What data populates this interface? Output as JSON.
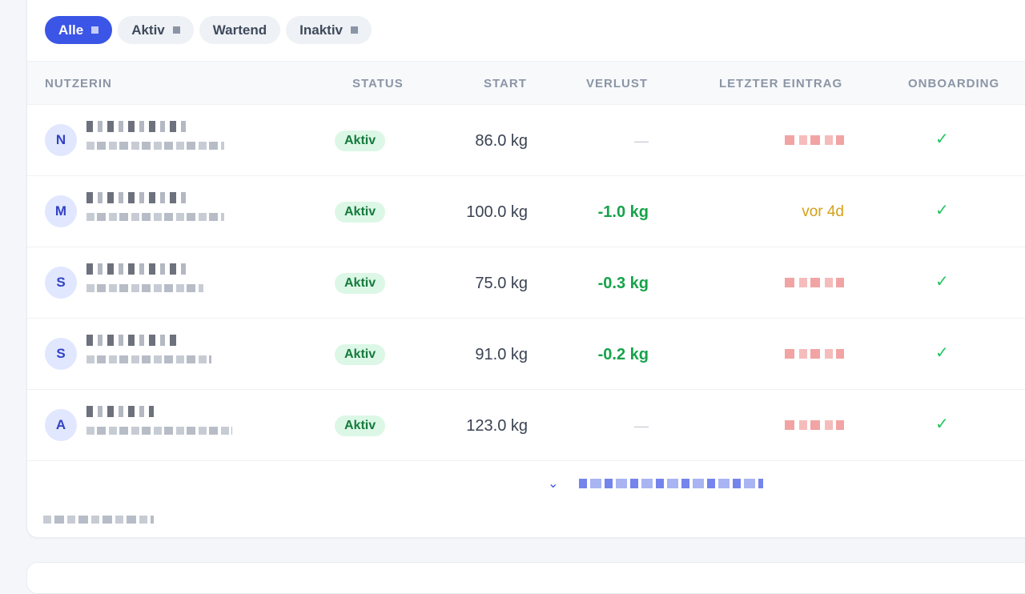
{
  "filters": [
    {
      "label": "Alle",
      "active": true
    },
    {
      "label": "Aktiv",
      "active": false
    },
    {
      "label": "Wartend",
      "active": false
    },
    {
      "label": "Inaktiv",
      "active": false
    }
  ],
  "columns": {
    "user": "NUTZERIN",
    "status": "STATUS",
    "start": "START",
    "loss": "VERLUST",
    "last": "LETZTER EINTRAG",
    "onboarding": "ONBOARDING"
  },
  "rows": [
    {
      "initial": "N",
      "status": "Aktiv",
      "start": "86.0 kg",
      "loss": "—",
      "last": "",
      "onboarding": "✓"
    },
    {
      "initial": "M",
      "status": "Aktiv",
      "start": "100.0 kg",
      "loss": "-1.0 kg",
      "last": "vor 4d",
      "onboarding": "✓"
    },
    {
      "initial": "S",
      "status": "Aktiv",
      "start": "75.0 kg",
      "loss": "-0.3 kg",
      "last": "",
      "onboarding": "✓"
    },
    {
      "initial": "S",
      "status": "Aktiv",
      "start": "91.0 kg",
      "loss": "-0.2 kg",
      "last": "",
      "onboarding": "✓"
    },
    {
      "initial": "A",
      "status": "Aktiv",
      "start": "123.0 kg",
      "loss": "—",
      "last": "",
      "onboarding": "✓"
    }
  ],
  "icons": {
    "load_more": "chevron-down-icon",
    "onboarding": "check-icon"
  },
  "colors": {
    "accent": "#3b55e6",
    "success": "#16a34a",
    "warning": "#d4a017"
  }
}
